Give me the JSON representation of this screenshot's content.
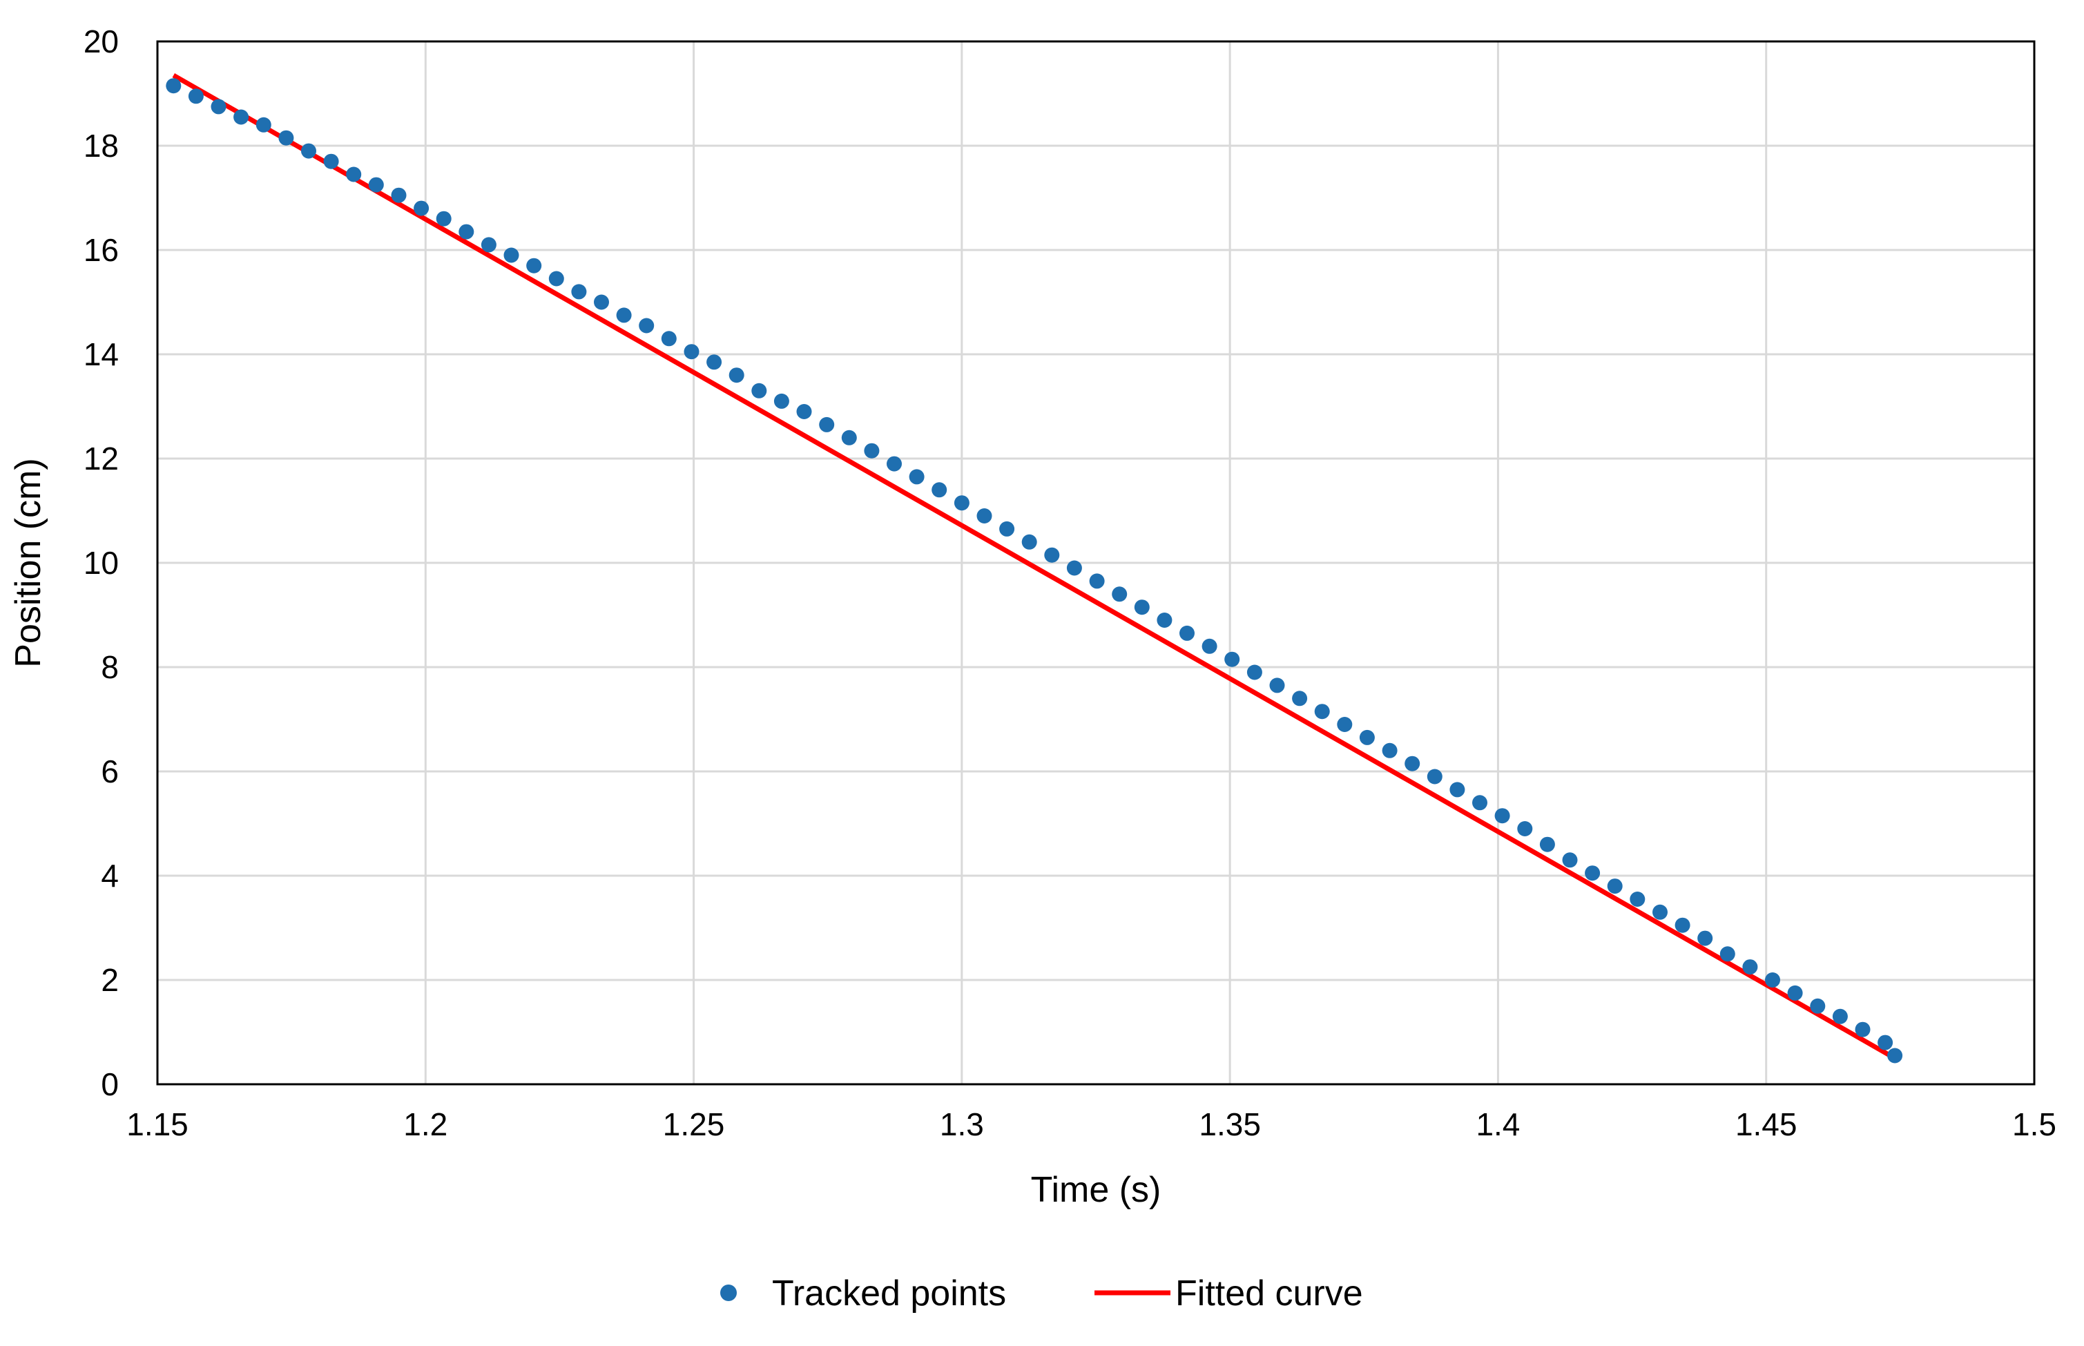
{
  "chart_data": {
    "type": "scatter",
    "title": "",
    "xlabel": "Time (s)",
    "ylabel": "Position (cm)",
    "xlim": [
      1.15,
      1.5
    ],
    "ylim": [
      0,
      20
    ],
    "x_ticks": [
      "1.15",
      "1.2",
      "1.25",
      "1.3",
      "1.35",
      "1.4",
      "1.45",
      "1.5"
    ],
    "y_ticks": [
      "0",
      "2",
      "4",
      "6",
      "8",
      "10",
      "12",
      "14",
      "16",
      "18",
      "20"
    ],
    "grid": true,
    "legend_position": "bottom",
    "colors": {
      "points": "#1f6fb0",
      "fit": "#ff0000",
      "grid": "#d9d9d9",
      "frame": "#000000"
    },
    "series": [
      {
        "name": "Tracked points",
        "kind": "scatter",
        "x": [
          1.153,
          1.1572,
          1.1614,
          1.1656,
          1.1698,
          1.174,
          1.1782,
          1.1824,
          1.1866,
          1.1908,
          1.195,
          1.1992,
          1.2034,
          1.2076,
          1.2118,
          1.216,
          1.2202,
          1.2244,
          1.2286,
          1.2328,
          1.237,
          1.2412,
          1.2454,
          1.2496,
          1.2538,
          1.258,
          1.2622,
          1.2664,
          1.2706,
          1.2748,
          1.279,
          1.2832,
          1.2874,
          1.2916,
          1.2958,
          1.3,
          1.3042,
          1.3084,
          1.3126,
          1.3168,
          1.321,
          1.3252,
          1.3294,
          1.3336,
          1.3378,
          1.342,
          1.3462,
          1.3504,
          1.3546,
          1.3588,
          1.363,
          1.3672,
          1.3714,
          1.3756,
          1.3798,
          1.384,
          1.3882,
          1.3924,
          1.3966,
          1.4008,
          1.405,
          1.4092,
          1.4134,
          1.4176,
          1.4218,
          1.426,
          1.4302,
          1.4344,
          1.4386,
          1.4428,
          1.447,
          1.4512,
          1.4554,
          1.4596,
          1.4638,
          1.468,
          1.4722,
          1.474
        ],
        "y": [
          19.15,
          18.95,
          18.75,
          18.55,
          18.4,
          18.15,
          17.9,
          17.7,
          17.45,
          17.25,
          17.05,
          16.8,
          16.6,
          16.35,
          16.1,
          15.9,
          15.7,
          15.45,
          15.2,
          15.0,
          14.75,
          14.55,
          14.3,
          14.05,
          13.85,
          13.6,
          13.3,
          13.1,
          12.9,
          12.65,
          12.4,
          12.15,
          11.9,
          11.65,
          11.4,
          11.15,
          10.9,
          10.65,
          10.4,
          10.15,
          9.9,
          9.65,
          9.4,
          9.15,
          8.9,
          8.65,
          8.4,
          8.15,
          7.9,
          7.65,
          7.4,
          7.15,
          6.9,
          6.65,
          6.4,
          6.15,
          5.9,
          5.65,
          5.4,
          5.15,
          4.9,
          4.6,
          4.3,
          4.05,
          3.8,
          3.55,
          3.3,
          3.05,
          2.8,
          2.5,
          2.25,
          2.0,
          1.75,
          1.5,
          1.3,
          1.05,
          0.8,
          0.55
        ]
      },
      {
        "name": "Fitted curve",
        "kind": "line",
        "x": [
          1.153,
          1.474
        ],
        "y": [
          19.35,
          0.5
        ]
      }
    ]
  }
}
